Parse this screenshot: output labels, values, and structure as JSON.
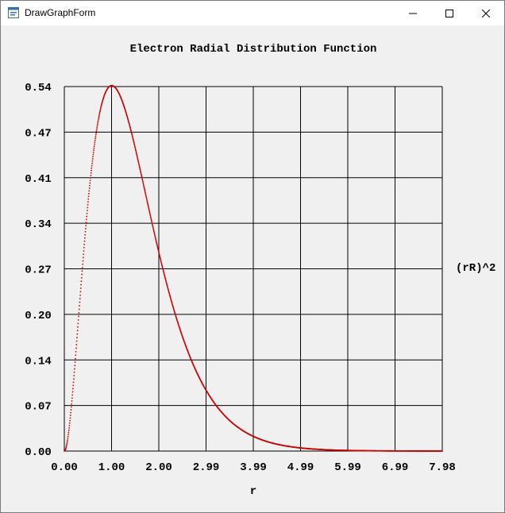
{
  "window": {
    "title": "DrawGraphForm",
    "icon": "app-form-icon",
    "controls": [
      "minimize-icon",
      "maximize-icon",
      "close-icon"
    ]
  },
  "chart_data": {
    "type": "scatter",
    "title": "Electron Radial Distribution Function",
    "xlabel": "r",
    "ylabel": "(rR)^2",
    "xlim": [
      0,
      7.98
    ],
    "ylim": [
      0,
      0.54
    ],
    "x_ticks": [
      "0.00",
      "1.00",
      "2.00",
      "2.99",
      "3.99",
      "4.99",
      "5.99",
      "6.99",
      "7.98"
    ],
    "y_ticks": [
      "0.00",
      "0.07",
      "0.14",
      "0.20",
      "0.27",
      "0.34",
      "0.41",
      "0.47",
      "0.54"
    ],
    "grid": true,
    "series_color": "#cc0000",
    "function": "4 r^2 e^(-2r)",
    "x": [
      0.0,
      0.25,
      0.5,
      0.75,
      1.0,
      1.25,
      1.5,
      1.75,
      2.0,
      2.5,
      3.0,
      3.5,
      4.0,
      4.5,
      5.0,
      5.5,
      6.0,
      6.5,
      7.0
    ],
    "y": [
      0.0,
      0.152,
      0.368,
      0.502,
      0.541,
      0.513,
      0.448,
      0.37,
      0.293,
      0.168,
      0.089,
      0.045,
      0.021,
      0.01,
      0.005,
      0.002,
      0.001,
      0.0,
      0.0
    ]
  }
}
